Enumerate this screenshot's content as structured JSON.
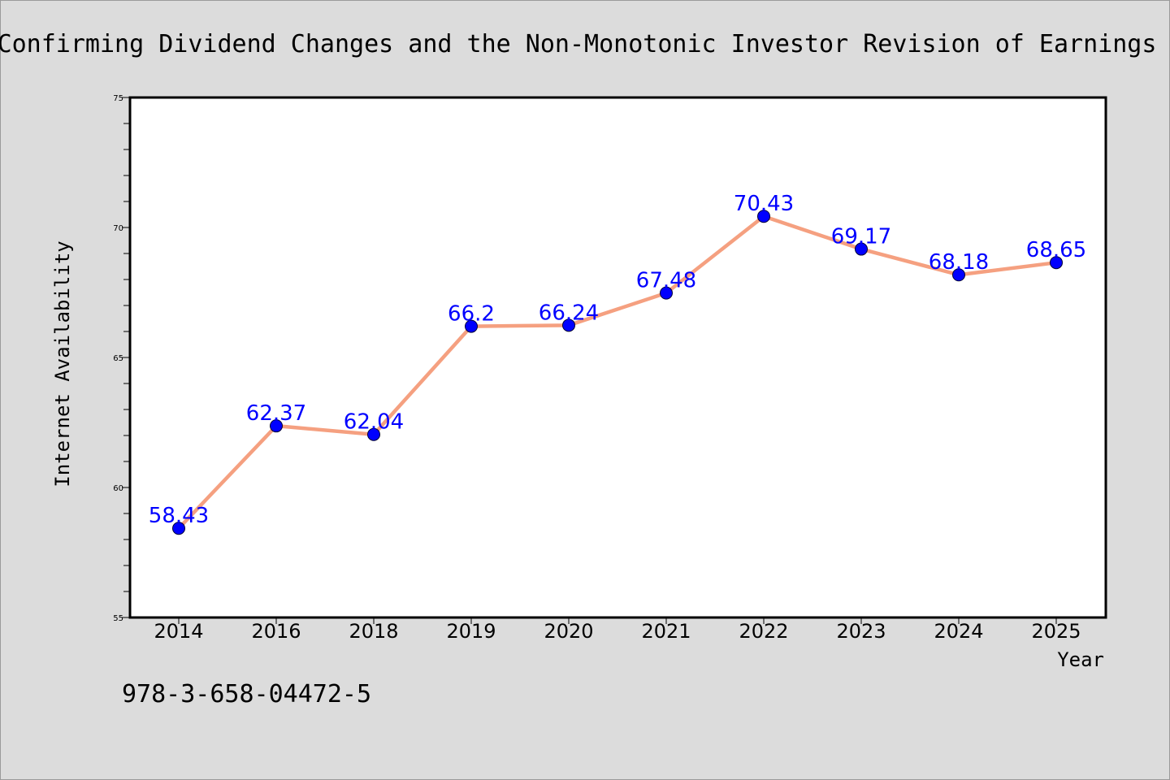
{
  "chart_data": {
    "type": "line",
    "title": "Confirming Dividend Changes and the Non-Monotonic Investor Revision of Earnings",
    "xlabel": "Year",
    "ylabel": "Internet Availability",
    "categories": [
      "2014",
      "2016",
      "2018",
      "2019",
      "2020",
      "2021",
      "2022",
      "2023",
      "2024",
      "2025"
    ],
    "series": [
      {
        "values": [
          58.43,
          62.37,
          62.04,
          66.2,
          66.24,
          67.48,
          70.43,
          69.17,
          68.18,
          68.65
        ],
        "labels": [
          "58.43",
          "62.37",
          "62.04",
          "66.2",
          "66.24",
          "67.48",
          "70.43",
          "69.17",
          "68.18",
          "68.65"
        ],
        "line_color": "#f5a080",
        "marker_color": "#0000ff"
      }
    ],
    "ylim": [
      55,
      75
    ],
    "yticks": [
      "55",
      "60",
      "65",
      "70",
      "75"
    ],
    "grid": false,
    "legend": "none"
  },
  "footnote": "978-3-658-04472-5"
}
